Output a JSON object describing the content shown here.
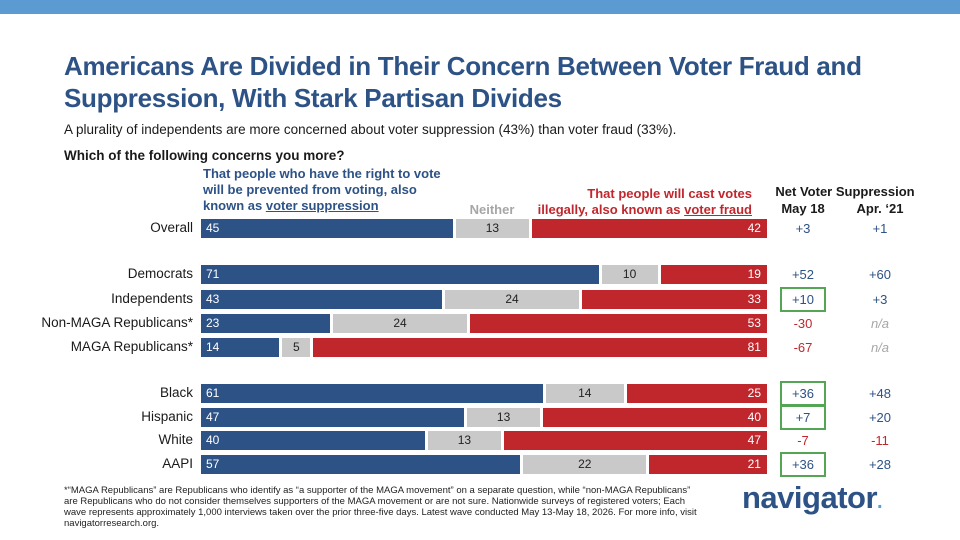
{
  "title": "Americans Are Divided in Their Concern Between Voter Fraud and Suppression, With Stark Partisan Divides",
  "subtitle": "A plurality of independents are more concerned about voter suppression (43%) than voter fraud (33%).",
  "question": "Which of the following concerns you more?",
  "headers": {
    "left_line1": "That people who have the right to vote",
    "left_line2": "will be prevented from voting, also",
    "left_line3_prefix": "known as ",
    "left_line3_underlined": "voter suppression",
    "neither": "Neither",
    "right_line1": "That people will cast votes",
    "right_line2_prefix": "illegally, also known as ",
    "right_line2_underlined": "voter fraud",
    "net_title": "Net Voter Suppression",
    "net_col1": "May 18",
    "net_col2": "Apr. ‘21"
  },
  "colors": {
    "suppression": "#2d5286",
    "neither": "#c9c9c9",
    "fraud": "#c0272d",
    "highlight_box": "#55a654",
    "top_bar": "#5c9bd1"
  },
  "chart_data": {
    "type": "bar",
    "stacked": true,
    "orientation": "horizontal",
    "categories": [
      "Overall",
      "Democrats",
      "Independents",
      "Non-MAGA Republicans*",
      "MAGA Republicans*",
      "Black",
      "Hispanic",
      "White",
      "AAPI"
    ],
    "groups": [
      [
        0
      ],
      [
        1,
        2,
        3,
        4
      ],
      [
        5,
        6,
        7,
        8
      ]
    ],
    "series": [
      {
        "name": "voter suppression",
        "values": [
          45,
          71,
          43,
          23,
          14,
          61,
          47,
          40,
          57
        ]
      },
      {
        "name": "Neither",
        "values": [
          13,
          10,
          24,
          24,
          5,
          14,
          13,
          13,
          22
        ]
      },
      {
        "name": "voter fraud",
        "values": [
          42,
          19,
          33,
          53,
          81,
          25,
          40,
          47,
          21
        ]
      }
    ],
    "net": {
      "may18": [
        "+3",
        "+52",
        "+10",
        "-30",
        "-67",
        "+36",
        "+7",
        "-7",
        "+36"
      ],
      "apr21": [
        "+1",
        "+60",
        "+3",
        "n/a",
        "n/a",
        "+48",
        "+20",
        "-11",
        "+28"
      ],
      "may18_highlighted": [
        false,
        false,
        true,
        false,
        false,
        true,
        true,
        false,
        true
      ]
    }
  },
  "footnote": "*“MAGA Republicans” are Republicans who identify as “a supporter of the MAGA movement” on a separate question, while “non-MAGA Republicans” are Republicans who do not consider themselves supporters of the MAGA movement or are not sure. Nationwide surveys of registered voters; Each wave represents approximately 1,000 interviews taken over the prior three-five days. Latest wave conducted May 13-May 18, 2026. For more info, visit navigatorresearch.org.",
  "logo": {
    "text": "navigator",
    "dot": "."
  }
}
